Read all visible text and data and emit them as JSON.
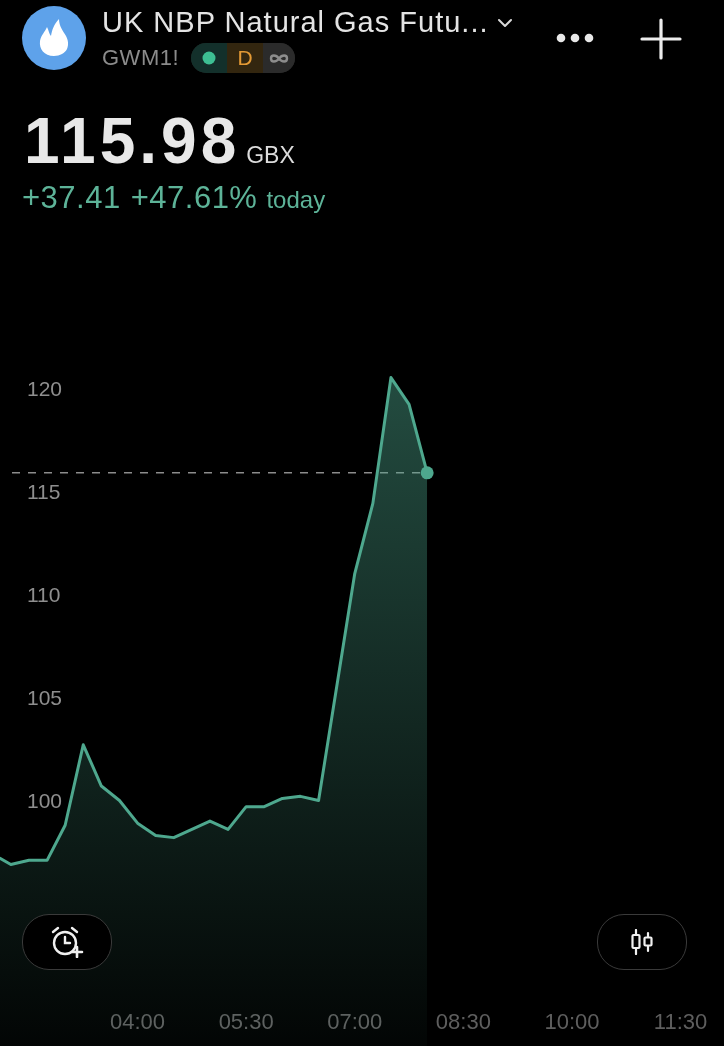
{
  "chart_data": {
    "type": "area",
    "title": "UK NBP Natural Gas Futu...",
    "subtitle": "GWM1!",
    "annotations": [
      "D",
      "115.98",
      "GBX",
      "+37.41",
      "+47.61%",
      "today"
    ],
    "x": [
      2.1,
      2.25,
      2.5,
      2.75,
      3,
      3.25,
      3.5,
      3.75,
      4,
      4.25,
      4.5,
      4.75,
      5,
      5.25,
      5.5,
      5.75,
      6,
      6.25,
      6.5,
      7,
      7.25,
      7.5,
      7.75,
      8
    ],
    "series": [
      {
        "type": "area",
        "color": "#4ea88e",
        "values": [
          97.3,
          97.0,
          97.2,
          97.2,
          98.9,
          102.8,
          100.8,
          100.1,
          99.0,
          98.4,
          98.3,
          98.7,
          99.1,
          98.7,
          99.8,
          99.8,
          100.2,
          100.3,
          100.1,
          111.1,
          114.5,
          120.6,
          119.3,
          115.98
        ]
      },
      {
        "type": "scatter",
        "color": "#4ea88e",
        "marker": "circle",
        "x": [
          8
        ],
        "values": [
          115.98
        ]
      }
    ],
    "xlim": [
      2.1,
      12.1
    ],
    "xticks": [
      {
        "value": 4,
        "label": "04:00"
      },
      {
        "value": 5.5,
        "label": "05:30"
      },
      {
        "value": 7,
        "label": "07:00"
      },
      {
        "value": 8.5,
        "label": "08:30"
      },
      {
        "value": 10,
        "label": "10:00"
      },
      {
        "value": 11.5,
        "label": "11:30"
      }
    ],
    "ylim": [
      88.2,
      138.9
    ],
    "yticks": [
      100,
      105,
      110,
      115,
      120
    ],
    "ref_lines": [
      {
        "axis": "y",
        "value": 115.98,
        "color": "#8c8c8c",
        "line_style": "dashed"
      }
    ],
    "grid": false,
    "legend": false,
    "marker": "none"
  }
}
